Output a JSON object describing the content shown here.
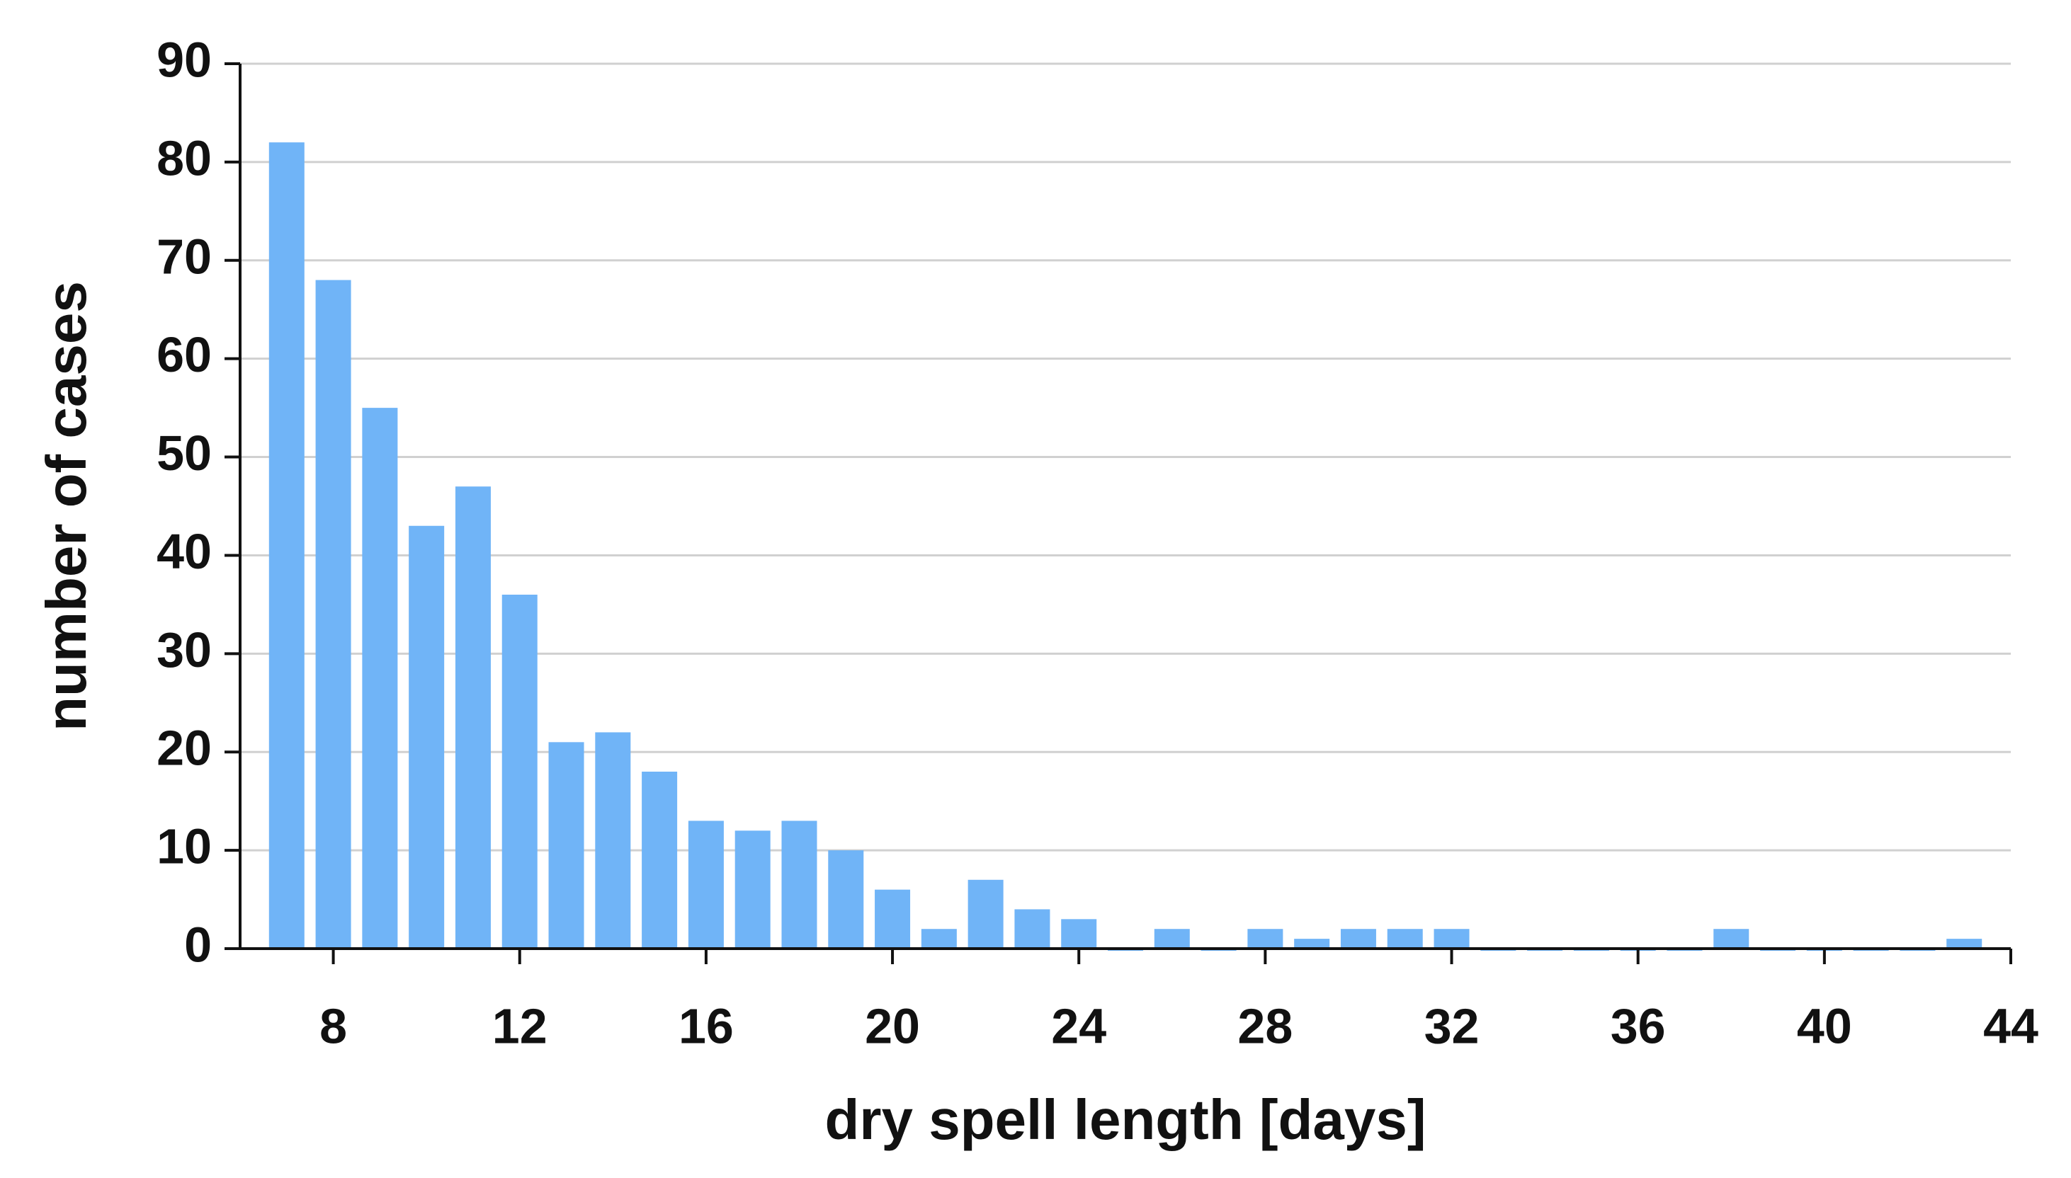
{
  "chart_data": {
    "type": "bar",
    "x_label": "dry spell length [days]",
    "y_label": "number of cases",
    "x": [
      7,
      8,
      9,
      10,
      11,
      12,
      13,
      14,
      15,
      16,
      17,
      18,
      19,
      20,
      21,
      22,
      23,
      24,
      25,
      26,
      27,
      28,
      29,
      30,
      31,
      32,
      33,
      34,
      35,
      36,
      37,
      38,
      39,
      40,
      41,
      42,
      43
    ],
    "values": [
      82,
      68,
      55,
      43,
      47,
      36,
      21,
      22,
      18,
      13,
      12,
      13,
      10,
      6,
      2,
      7,
      4,
      3,
      0,
      2,
      0,
      2,
      1,
      2,
      2,
      2,
      0,
      0,
      0,
      0,
      0,
      2,
      0,
      0,
      0,
      0,
      1
    ],
    "color": "#70b4f7",
    "xlim": [
      6,
      44
    ],
    "xticks": [
      8,
      12,
      16,
      20,
      24,
      28,
      32,
      36,
      40,
      44
    ],
    "ylim": [
      0,
      90
    ],
    "yticks": [
      0,
      10,
      20,
      30,
      40,
      50,
      60,
      70,
      80,
      90
    ],
    "grid": true
  }
}
